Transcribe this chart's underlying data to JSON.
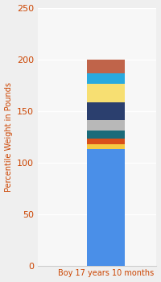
{
  "category": "Boy 17 years 10 months",
  "ylabel": "Percentile Weight in Pounds",
  "ylim": [
    0,
    250
  ],
  "yticks": [
    0,
    50,
    100,
    150,
    200,
    250
  ],
  "background_color": "#efefef",
  "plot_bg": "#f7f7f7",
  "bar_width": 0.45,
  "segments": [
    {
      "value": 113,
      "color": "#4a8fe8"
    },
    {
      "value": 5,
      "color": "#f5c842"
    },
    {
      "value": 5,
      "color": "#d94f1a"
    },
    {
      "value": 8,
      "color": "#1a6b7a"
    },
    {
      "value": 10,
      "color": "#b8b8b8"
    },
    {
      "value": 17,
      "color": "#2b3f6e"
    },
    {
      "value": 18,
      "color": "#f7df72"
    },
    {
      "value": 10,
      "color": "#29aadf"
    },
    {
      "value": 14,
      "color": "#c0644a"
    }
  ],
  "ylabel_color": "#cc4400",
  "xlabel_color": "#cc4400",
  "tick_color": "#cc4400",
  "tick_fontsize": 8,
  "xlabel_fontsize": 7,
  "ylabel_fontsize": 7,
  "grid_color": "#ffffff",
  "spine_color": "#cccccc"
}
